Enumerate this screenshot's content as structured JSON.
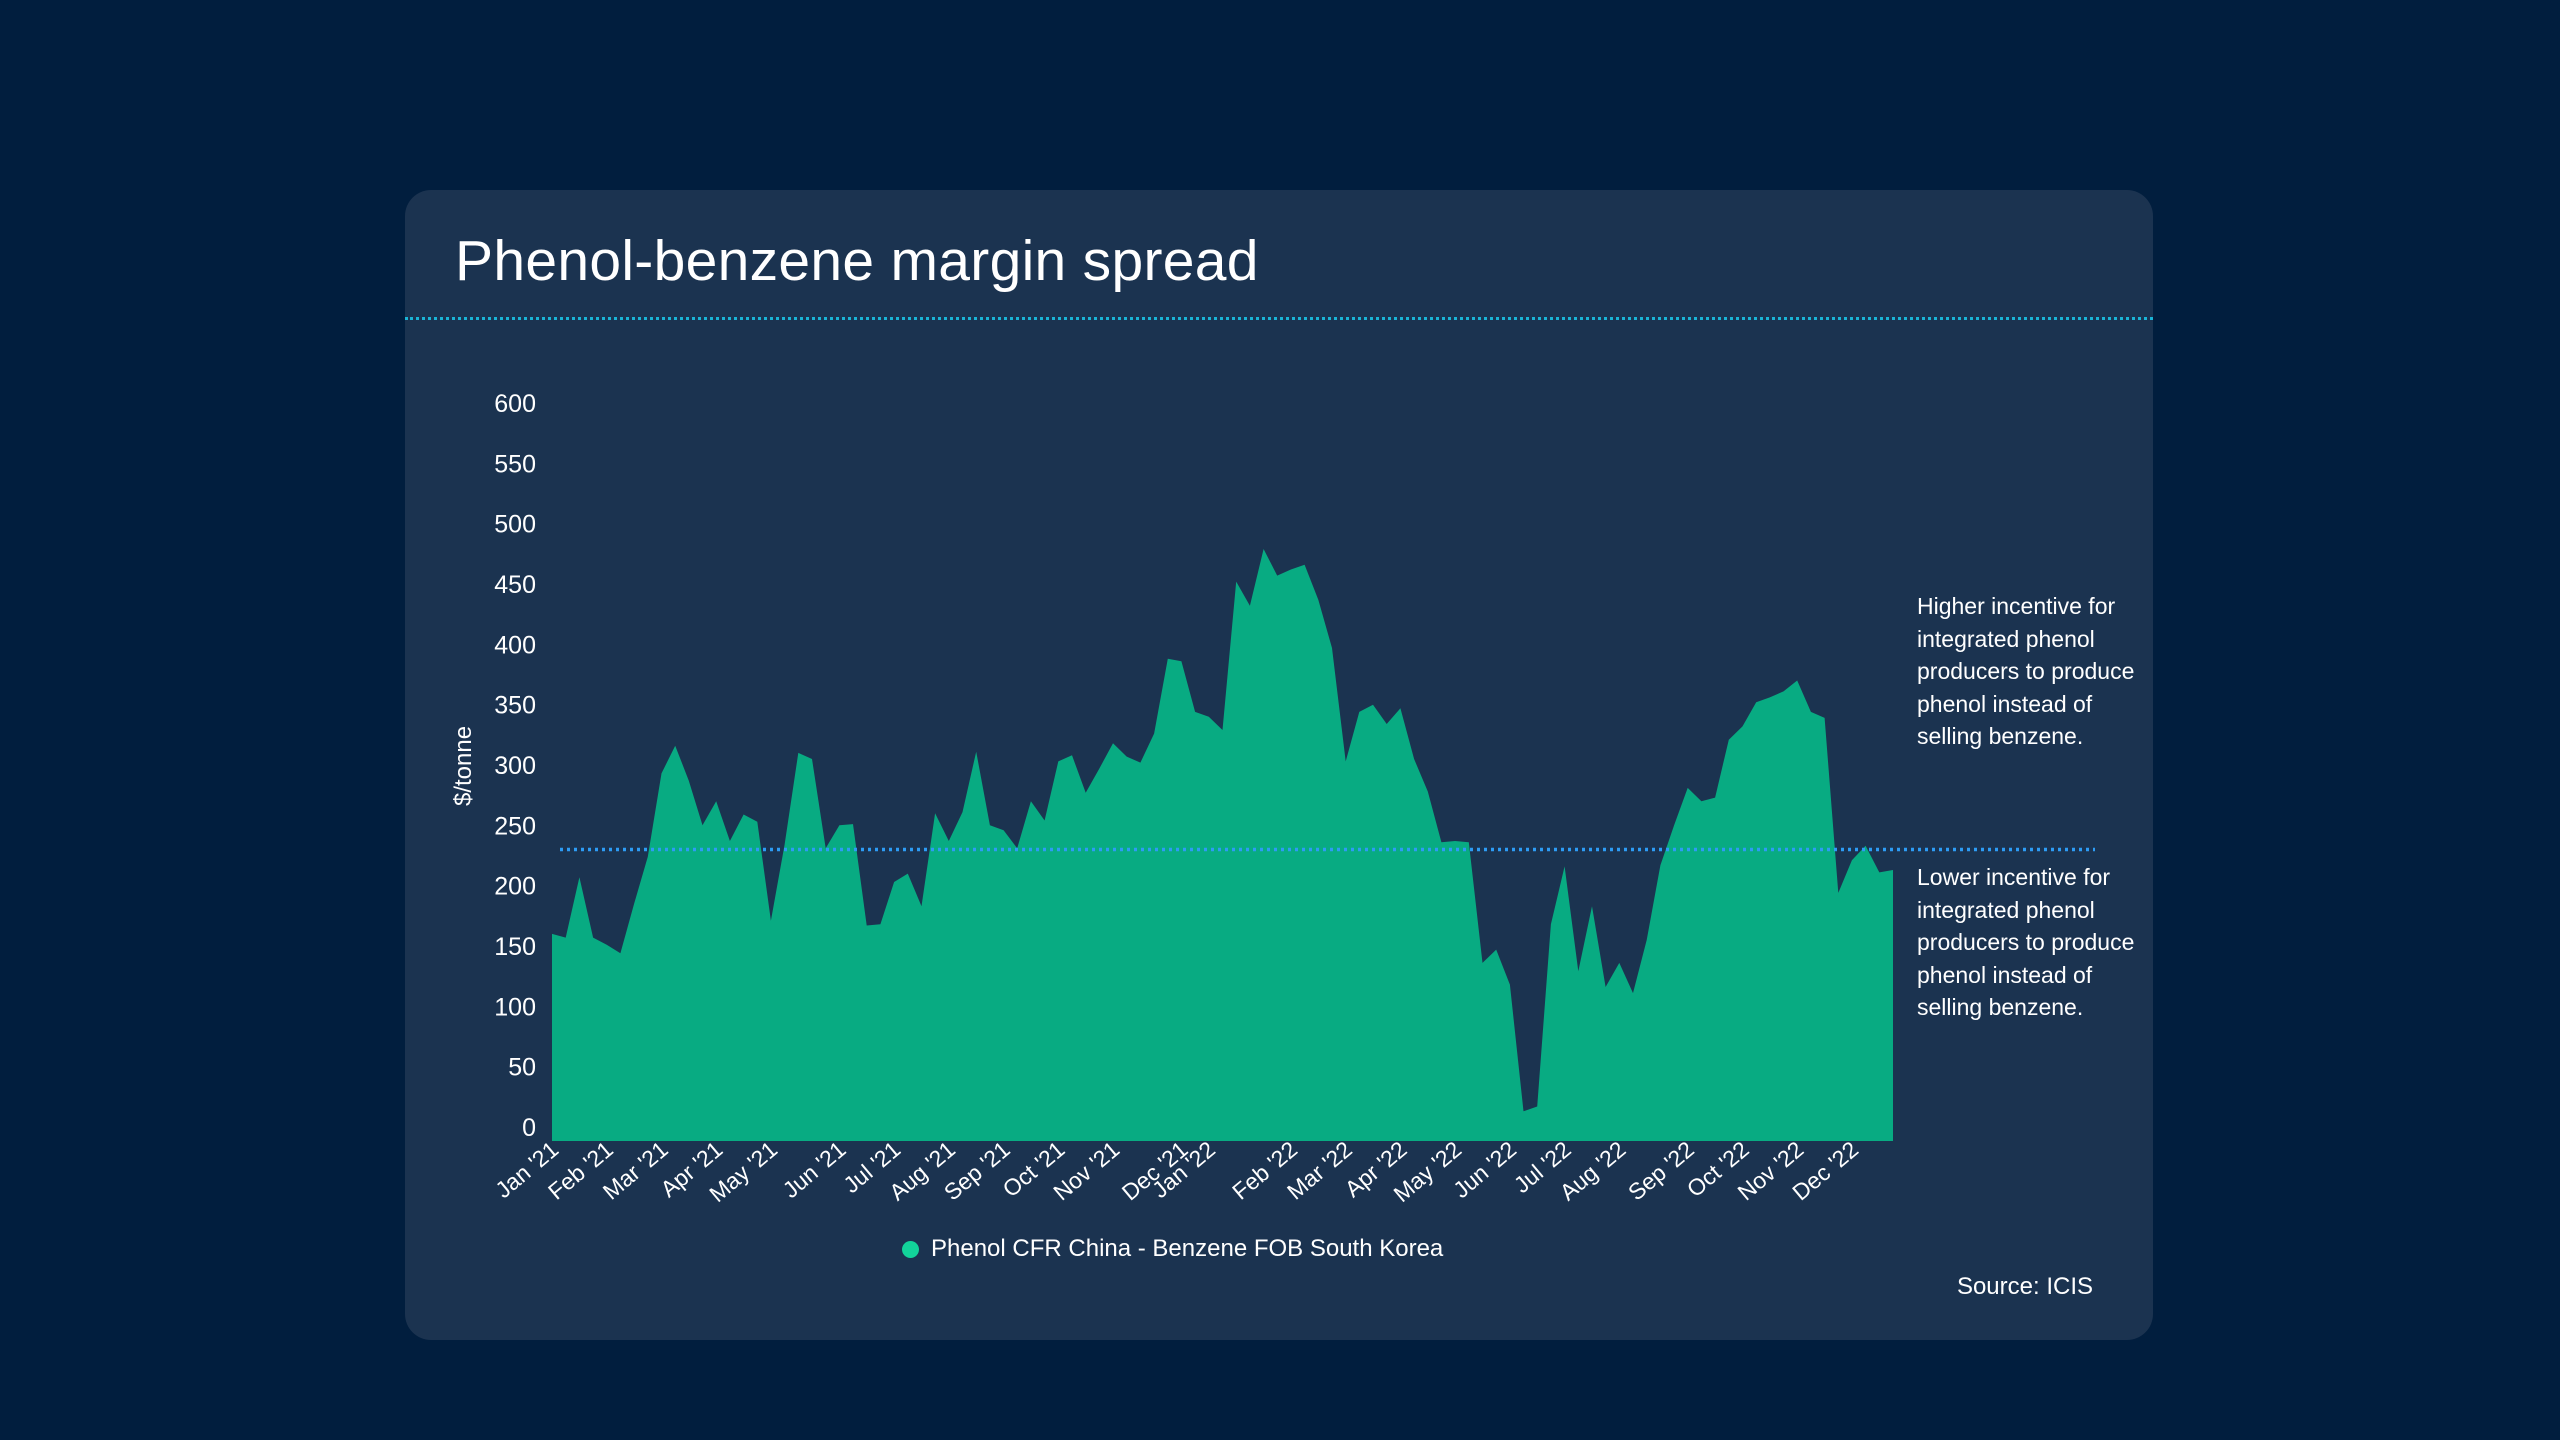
{
  "chart_data": {
    "type": "area",
    "title": "Phenol-benzene margin spread",
    "xlabel": "",
    "ylabel": "$/tonne",
    "ylim": [
      0,
      600
    ],
    "y_ticks": [
      0,
      50,
      100,
      150,
      200,
      250,
      300,
      350,
      400,
      450,
      500,
      550,
      600
    ],
    "x_ticks": [
      {
        "label": "Jan '21",
        "week": 0
      },
      {
        "label": "Feb '21",
        "week": 4
      },
      {
        "label": "Mar '21",
        "week": 8
      },
      {
        "label": "Apr '21",
        "week": 12
      },
      {
        "label": "May '21",
        "week": 16
      },
      {
        "label": "Jun '21",
        "week": 21
      },
      {
        "label": "Jul '21",
        "week": 25
      },
      {
        "label": "Aug '21",
        "week": 29
      },
      {
        "label": "Sep '21",
        "week": 33
      },
      {
        "label": "Oct '21",
        "week": 37
      },
      {
        "label": "Nov '21",
        "week": 41
      },
      {
        "label": "Dec '21",
        "week": 46
      },
      {
        "label": "Jan '22",
        "week": 48
      },
      {
        "label": "Feb '22",
        "week": 54
      },
      {
        "label": "Mar '22",
        "week": 58
      },
      {
        "label": "Apr '22",
        "week": 62
      },
      {
        "label": "May '22",
        "week": 66
      },
      {
        "label": "Jun '22",
        "week": 70
      },
      {
        "label": "Jul '22",
        "week": 74
      },
      {
        "label": "Aug '22",
        "week": 78
      },
      {
        "label": "Sep '22",
        "week": 83
      },
      {
        "label": "Oct '22",
        "week": 87
      },
      {
        "label": "Nov '22",
        "week": 91
      },
      {
        "label": "Dec '22",
        "week": 95
      }
    ],
    "series": [
      {
        "name": "Phenol CFR China - Benzene FOB South Korea",
        "color": "#08ab82",
        "values": [
          160,
          157,
          207,
          157,
          151,
          144,
          185,
          224,
          293,
          316,
          287,
          250,
          270,
          237,
          259,
          253,
          171,
          234,
          310,
          305,
          231,
          250,
          251,
          167,
          168,
          203,
          210,
          183,
          260,
          237,
          261,
          311,
          250,
          246,
          231,
          270,
          254,
          303,
          308,
          277,
          297,
          318,
          307,
          302,
          326,
          388,
          386,
          344,
          340,
          329,
          452,
          432,
          479,
          457,
          462,
          466,
          437,
          397,
          303,
          344,
          350,
          334,
          347,
          305,
          278,
          236,
          237,
          236,
          136,
          147,
          118,
          13,
          17,
          168,
          216,
          129,
          183,
          116,
          136,
          111,
          155,
          217,
          250,
          281,
          270,
          273,
          321,
          332,
          352,
          356,
          361,
          370,
          344,
          339,
          194,
          221,
          233,
          211,
          213
        ]
      }
    ],
    "reference_line": {
      "value": 230,
      "color": "#2d9cf5",
      "style": "dotted"
    },
    "annotations": [
      "Higher incentive for integrated phenol producers to produce phenol instead of selling benzene.",
      "Lower incentive for integrated phenol producers to produce phenol instead of selling benzene."
    ],
    "legend": {
      "label": "Phenol CFR China - Benzene FOB South Korea",
      "placement": "bottom-center",
      "color": "#12d39a"
    },
    "source": "Source: ICIS"
  }
}
